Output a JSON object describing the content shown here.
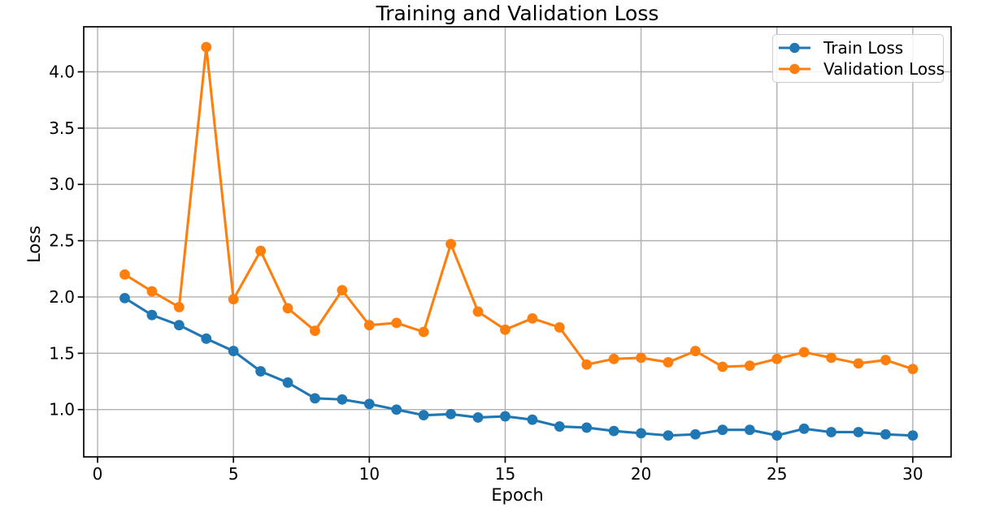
{
  "chart_data": {
    "type": "line",
    "title": "Training and Validation Loss",
    "xlabel": "Epoch",
    "ylabel": "Loss",
    "x": [
      1,
      2,
      3,
      4,
      5,
      6,
      7,
      8,
      9,
      10,
      11,
      12,
      13,
      14,
      15,
      16,
      17,
      18,
      19,
      20,
      21,
      22,
      23,
      24,
      25,
      26,
      27,
      28,
      29,
      30
    ],
    "series": [
      {
        "name": "Train Loss",
        "color": "#1f77b4",
        "marker": "circle",
        "values": [
          1.99,
          1.84,
          1.75,
          1.63,
          1.52,
          1.34,
          1.24,
          1.1,
          1.09,
          1.05,
          1.0,
          0.95,
          0.96,
          0.93,
          0.94,
          0.91,
          0.85,
          0.84,
          0.81,
          0.79,
          0.77,
          0.78,
          0.82,
          0.82,
          0.77,
          0.83,
          0.8,
          0.8,
          0.78,
          0.77
        ]
      },
      {
        "name": "Validation Loss",
        "color": "#ff7f0e",
        "marker": "circle",
        "values": [
          2.2,
          2.05,
          1.91,
          4.22,
          1.98,
          2.41,
          1.9,
          1.7,
          2.06,
          1.75,
          1.77,
          1.69,
          2.47,
          1.87,
          1.71,
          1.81,
          1.73,
          1.4,
          1.45,
          1.46,
          1.42,
          1.52,
          1.38,
          1.39,
          1.45,
          1.51,
          1.46,
          1.41,
          1.44,
          1.36
        ]
      }
    ],
    "xlim": [
      -0.51,
      31.41
    ],
    "ylim": [
      0.58,
      4.4
    ],
    "xtick_values": [
      0,
      5,
      10,
      15,
      20,
      25,
      30
    ],
    "xtick_labels": [
      "0",
      "5",
      "10",
      "15",
      "20",
      "25",
      "30"
    ],
    "ytick_values": [
      1.0,
      1.5,
      2.0,
      2.5,
      3.0,
      3.5,
      4.0
    ],
    "ytick_labels": [
      "1.0",
      "1.5",
      "2.0",
      "2.5",
      "3.0",
      "3.5",
      "4.0"
    ],
    "grid": true,
    "legend": {
      "position": "upper right"
    },
    "colors": {
      "grid": "#b0b0b0",
      "spine": "#000000",
      "text": "#000000",
      "legend_border": "#cccccc",
      "background": "#ffffff"
    }
  }
}
